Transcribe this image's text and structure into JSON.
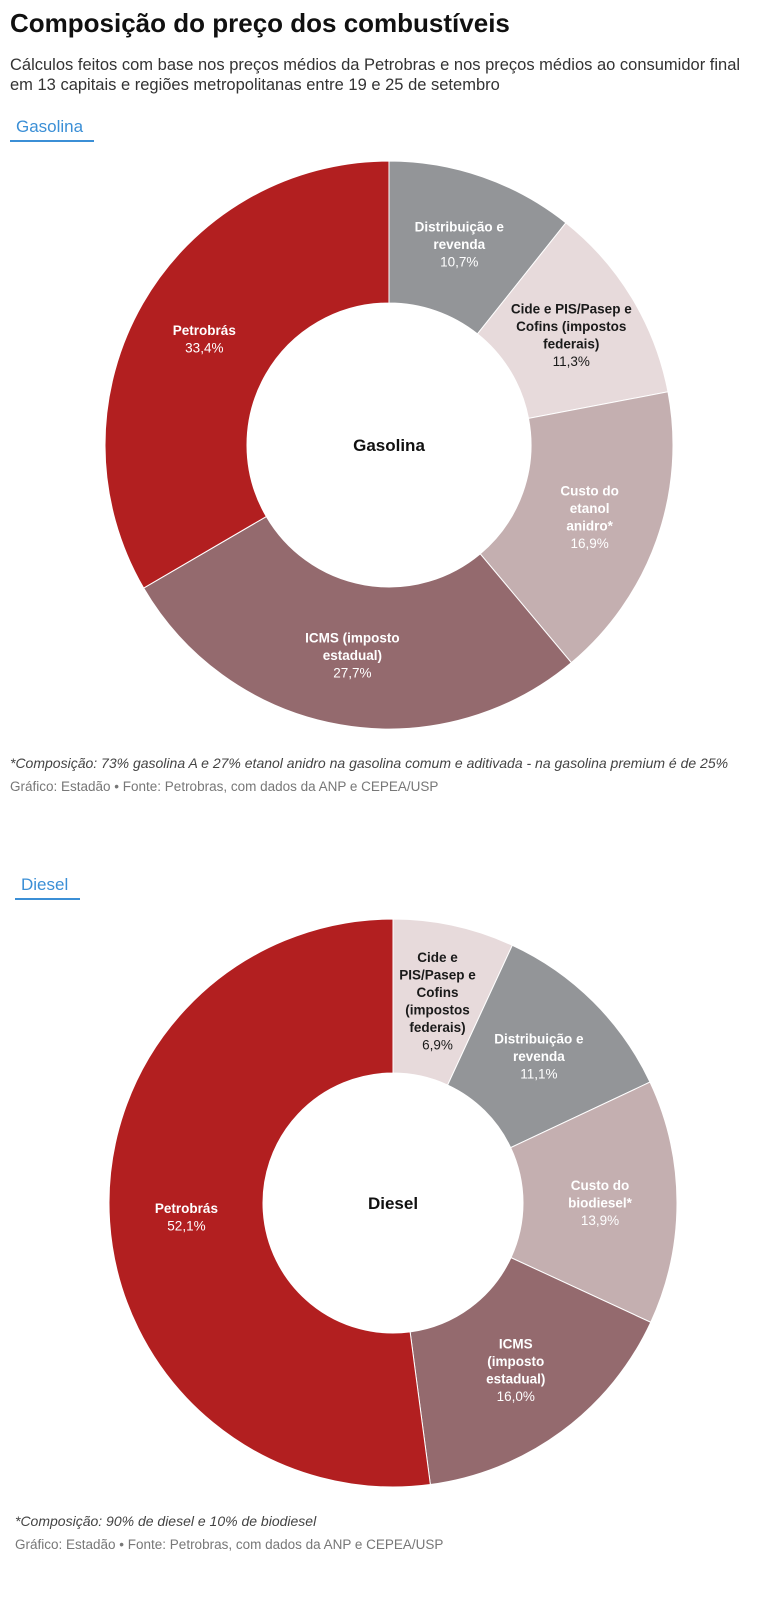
{
  "header": {
    "title": "Composição do preço dos combustíveis",
    "subtitle": "Cálculos feitos com base nos preços médios da Petrobras e nos preços médios ao consumidor final em 13 capitais e regiões metropolitanas entre 19 e 25 de setembro"
  },
  "sections": [
    {
      "tab_label": "Gasolina",
      "note": "*Composição: 73% gasolina A e 27% etanol anidro na gasolina comum e aditivada - na gasolina premium é de 25%",
      "source": "Gráfico: Estadão • Fonte: Petrobras, com dados da ANP e CEPEA/USP"
    },
    {
      "tab_label": "Diesel",
      "note": "*Composição: 90% de diesel e 10% de biodiesel",
      "source": "Gráfico: Estadão • Fonte: Petrobras, com dados da ANP e CEPEA/USP"
    }
  ],
  "chart_data": [
    {
      "type": "pie",
      "donut": true,
      "center_label": "Gasolina",
      "slices": [
        {
          "label": "Distribuição e revenda",
          "value": 10.7,
          "value_label": "10,7%",
          "color": "#939598",
          "text_color": "#ffffff"
        },
        {
          "label": "Cide e PIS/Pasep e Cofins (impostos federais)",
          "value": 11.3,
          "value_label": "11,3%",
          "color": "#e7dadb",
          "text_color": "#1a1a1a"
        },
        {
          "label": "Custo do etanol anidro*",
          "value": 16.9,
          "value_label": "16,9%",
          "color": "#c4afb0",
          "text_color": "#ffffff"
        },
        {
          "label": "ICMS (imposto estadual)",
          "value": 27.7,
          "value_label": "27,7%",
          "color": "#946a6e",
          "text_color": "#ffffff"
        },
        {
          "label": "Petrobrás",
          "value": 33.4,
          "value_label": "33,4%",
          "color": "#b21f20",
          "text_color": "#ffffff"
        }
      ]
    },
    {
      "type": "pie",
      "donut": true,
      "center_label": "Diesel",
      "slices": [
        {
          "label": "Cide e PIS/Pasep e Cofins (impostos federais)",
          "value": 6.9,
          "value_label": "6,9%",
          "color": "#e7dadb",
          "text_color": "#1a1a1a"
        },
        {
          "label": "Distribuição e revenda",
          "value": 11.1,
          "value_label": "11,1%",
          "color": "#939598",
          "text_color": "#ffffff"
        },
        {
          "label": "Custo do biodiesel*",
          "value": 13.9,
          "value_label": "13,9%",
          "color": "#c4afb0",
          "text_color": "#ffffff"
        },
        {
          "label": "ICMS (imposto estadual)",
          "value": 16.0,
          "value_label": "16,0%",
          "color": "#946a6e",
          "text_color": "#ffffff"
        },
        {
          "label": "Petrobrás",
          "value": 52.1,
          "value_label": "52,1%",
          "color": "#b21f20",
          "text_color": "#ffffff"
        }
      ]
    }
  ]
}
